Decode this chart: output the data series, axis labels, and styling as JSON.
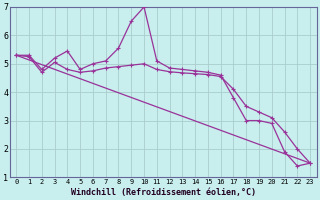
{
  "bg_color": "#c8eeee",
  "grid_color": "#aacccc",
  "line_color": "#993399",
  "spine_color": "#666699",
  "xlabel": "Windchill (Refroidissement éolien,°C)",
  "xlim": [
    -0.5,
    23.5
  ],
  "ylim": [
    1,
    7
  ],
  "yticks": [
    1,
    2,
    3,
    4,
    5,
    6,
    7
  ],
  "xticks": [
    0,
    1,
    2,
    3,
    4,
    5,
    6,
    7,
    8,
    9,
    10,
    11,
    12,
    13,
    14,
    15,
    16,
    17,
    18,
    19,
    20,
    21,
    22,
    23
  ],
  "line1_x": [
    0,
    1,
    2,
    3,
    4,
    5,
    6,
    7,
    8,
    9,
    10,
    11,
    12,
    13,
    14,
    15,
    16,
    17,
    18,
    19,
    20,
    21,
    22,
    23
  ],
  "line1_y": [
    5.3,
    5.3,
    4.8,
    5.2,
    5.45,
    4.8,
    5.0,
    5.1,
    5.55,
    6.5,
    7.0,
    5.1,
    4.85,
    4.8,
    4.75,
    4.7,
    4.6,
    3.8,
    3.0,
    3.0,
    2.9,
    1.9,
    1.4,
    1.5
  ],
  "line2_x": [
    0,
    1,
    2,
    3,
    4,
    5,
    6,
    7,
    8,
    9,
    10,
    11,
    12,
    13,
    14,
    15,
    16,
    17,
    18,
    19,
    20,
    21,
    22,
    23
  ],
  "line2_y": [
    5.3,
    5.25,
    4.7,
    5.05,
    4.8,
    4.7,
    4.75,
    4.85,
    4.9,
    4.95,
    5.0,
    4.8,
    4.72,
    4.68,
    4.65,
    4.62,
    4.55,
    4.1,
    3.5,
    3.3,
    3.1,
    2.6,
    2.0,
    1.5
  ],
  "line3_x": [
    0,
    23
  ],
  "line3_y": [
    5.3,
    1.5
  ]
}
